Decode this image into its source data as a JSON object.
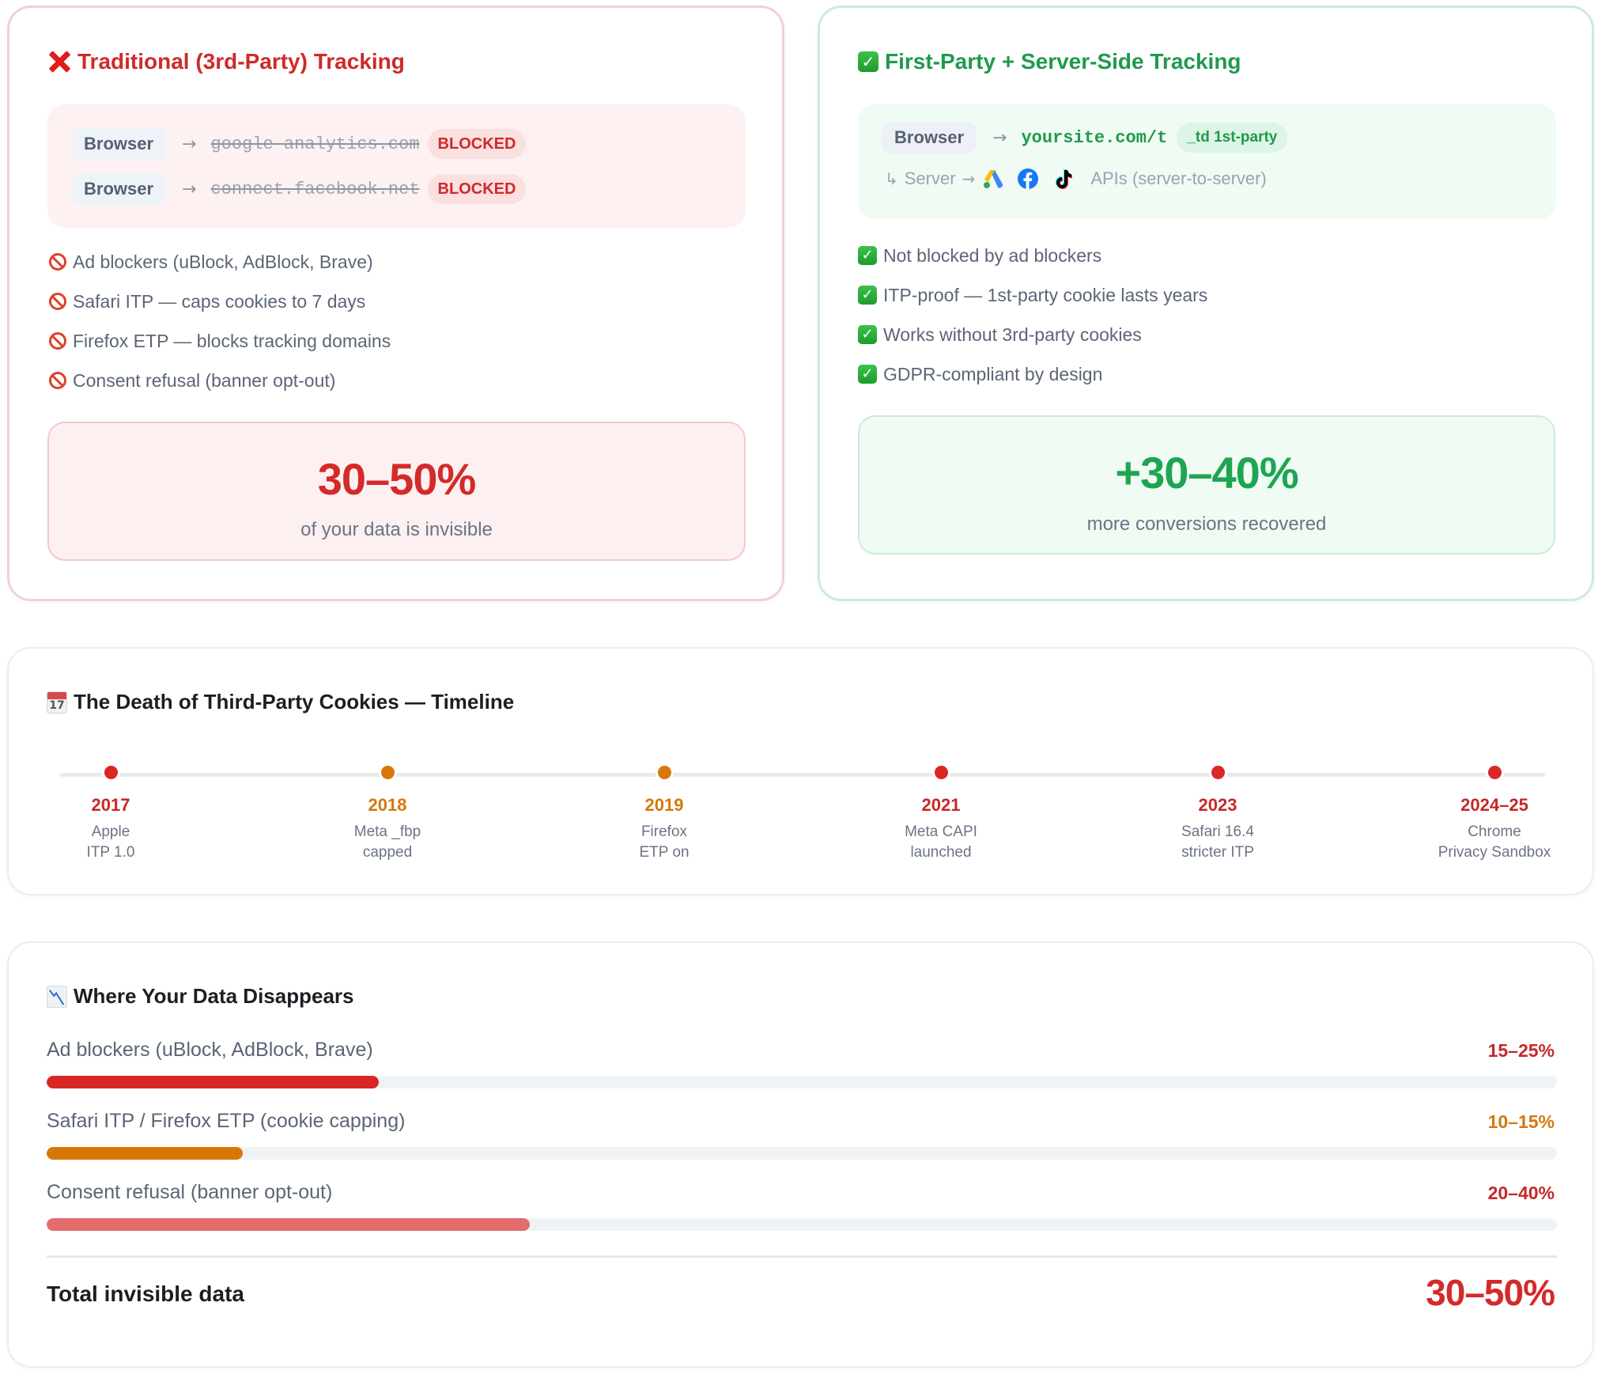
{
  "traditional": {
    "title": "Traditional (3rd-Party) Tracking",
    "icon": "cross-mark-icon",
    "flows": [
      {
        "source": "Browser",
        "arrow": "→",
        "domain": "google-analytics.com",
        "status": "BLOCKED"
      },
      {
        "source": "Browser",
        "arrow": "→",
        "domain": "connect.facebook.net",
        "status": "BLOCKED"
      }
    ],
    "issues": [
      "Ad blockers (uBlock, AdBlock, Brave)",
      "Safari ITP — caps cookies to 7 days",
      "Firefox ETP — blocks tracking domains",
      "Consent refusal (banner opt-out)"
    ],
    "stat": {
      "value": "30–50%",
      "caption": "of your data is invisible"
    },
    "color": "#cf2a2a"
  },
  "first_party": {
    "title": "First-Party + Server-Side Tracking",
    "icon": "check-mark-button-icon",
    "flow": {
      "source": "Browser",
      "arrow": "→",
      "domain": "yoursite.com/t",
      "badge": "_td 1st-party"
    },
    "server_row": {
      "prefix": "↳",
      "label": "Server",
      "arrow": "→",
      "icons": [
        "google-ads-icon",
        "facebook-icon",
        "tiktok-icon"
      ],
      "suffix": "APIs (server-to-server)"
    },
    "benefits": [
      "Not blocked by ad blockers",
      "ITP-proof — 1st-party cookie lasts years",
      "Works without 3rd-party cookies",
      "GDPR-compliant by design"
    ],
    "stat": {
      "value": "+30–40%",
      "caption": "more conversions recovered"
    },
    "color": "#1f9a4c"
  },
  "timeline": {
    "title": "The Death of Third-Party Cookies — Timeline",
    "icon": "calendar-icon",
    "calendar_day": "17",
    "events": [
      {
        "year": "2017",
        "line1": "Apple",
        "line2": "ITP 1.0",
        "color": "#dc2626",
        "year_color": "#c62828"
      },
      {
        "year": "2018",
        "line1": "Meta _fbp",
        "line2": "capped",
        "color": "#d97706",
        "year_color": "#d4780a"
      },
      {
        "year": "2019",
        "line1": "Firefox",
        "line2": "ETP on",
        "color": "#d97706",
        "year_color": "#d4780a"
      },
      {
        "year": "2021",
        "line1": "Meta CAPI",
        "line2": "launched",
        "color": "#dc2626",
        "year_color": "#c62828"
      },
      {
        "year": "2023",
        "line1": "Safari 16.4",
        "line2": "stricter ITP",
        "color": "#dc2626",
        "year_color": "#c62828"
      },
      {
        "year": "2024–25",
        "line1": "Chrome",
        "line2": "Privacy Sandbox",
        "color": "#dc2626",
        "year_color": "#c62828"
      }
    ]
  },
  "data_loss": {
    "title": "Where Your Data Disappears",
    "icon": "chart-decreasing-icon",
    "rows": [
      {
        "label": "Ad blockers (uBlock, AdBlock, Brave)",
        "value": "15–25%",
        "fill_pct": 22,
        "color": "#dc2626",
        "value_color": "#c62828"
      },
      {
        "label": "Safari ITP / Firefox ETP (cookie capping)",
        "value": "10–15%",
        "fill_pct": 13,
        "color": "#d97706",
        "value_color": "#d4780a"
      },
      {
        "label": "Consent refusal (banner opt-out)",
        "value": "20–40%",
        "fill_pct": 32,
        "color": "#e36d6d",
        "value_color": "#c62828"
      }
    ],
    "total_label": "Total invisible data",
    "total_value": "30–50%"
  }
}
